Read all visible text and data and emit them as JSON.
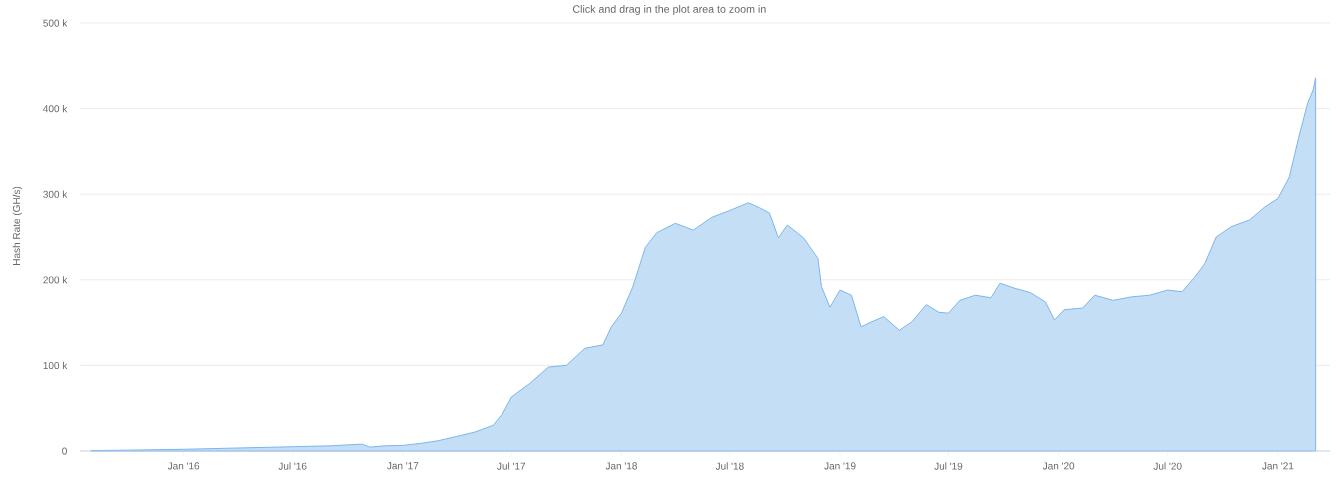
{
  "chart_data": {
    "type": "area",
    "subtitle": "Click and drag in the plot area to zoom in",
    "ylabel": "Hash Rate (GH/s)",
    "x": [
      "2015-07-30",
      "2015-10-01",
      "2016-01-01",
      "2016-04-01",
      "2016-07-01",
      "2016-09-01",
      "2016-10-25",
      "2016-11-07",
      "2016-12-01",
      "2017-01-01",
      "2017-02-01",
      "2017-03-01",
      "2017-04-01",
      "2017-05-01",
      "2017-06-01",
      "2017-06-15",
      "2017-07-01",
      "2017-08-01",
      "2017-09-01",
      "2017-10-01",
      "2017-11-01",
      "2017-12-01",
      "2017-12-15",
      "2018-01-01",
      "2018-01-20",
      "2018-02-10",
      "2018-03-01",
      "2018-04-01",
      "2018-05-01",
      "2018-06-01",
      "2018-07-01",
      "2018-08-01",
      "2018-08-20",
      "2018-09-05",
      "2018-09-20",
      "2018-10-05",
      "2018-11-01",
      "2018-11-25",
      "2018-12-01",
      "2018-12-15",
      "2019-01-01",
      "2019-01-20",
      "2019-02-05",
      "2019-02-20",
      "2019-03-15",
      "2019-04-10",
      "2019-05-01",
      "2019-05-25",
      "2019-06-15",
      "2019-07-01",
      "2019-07-20",
      "2019-08-15",
      "2019-09-10",
      "2019-09-25",
      "2019-10-20",
      "2019-11-15",
      "2019-12-10",
      "2019-12-25",
      "2020-01-10",
      "2020-02-10",
      "2020-03-01",
      "2020-04-01",
      "2020-05-01",
      "2020-06-01",
      "2020-07-01",
      "2020-07-25",
      "2020-08-15",
      "2020-09-01",
      "2020-09-20",
      "2020-10-15",
      "2020-11-15",
      "2020-12-10",
      "2021-01-01",
      "2021-01-20",
      "2021-02-05",
      "2021-02-20",
      "2021-03-01",
      "2021-03-05"
    ],
    "values": [
      500,
      1000,
      2000,
      3500,
      5000,
      6000,
      8000,
      4500,
      6000,
      6500,
      9000,
      12000,
      17000,
      22000,
      30000,
      42000,
      63000,
      79000,
      98000,
      100000,
      120000,
      124000,
      145000,
      161000,
      192000,
      238000,
      255000,
      266000,
      258000,
      273000,
      281000,
      290000,
      284000,
      278000,
      249000,
      264000,
      249000,
      225000,
      192000,
      168000,
      188000,
      182000,
      145000,
      150000,
      157000,
      141000,
      151000,
      171000,
      162000,
      161000,
      176000,
      182000,
      179000,
      196000,
      190000,
      185000,
      174000,
      153000,
      165000,
      167000,
      182000,
      176000,
      180000,
      182000,
      188000,
      186000,
      203000,
      219000,
      250000,
      262000,
      270000,
      285000,
      295000,
      320000,
      367000,
      407000,
      422000,
      436000
    ],
    "color": "#7cb5ec",
    "xlim": [
      "2015-07-12",
      "2021-03-29"
    ],
    "xticks": [
      {
        "value": "2016-01-01",
        "label": "Jan '16"
      },
      {
        "value": "2016-07-01",
        "label": "Jul '16"
      },
      {
        "value": "2017-01-01",
        "label": "Jan '17"
      },
      {
        "value": "2017-07-01",
        "label": "Jul '17"
      },
      {
        "value": "2018-01-01",
        "label": "Jan '18"
      },
      {
        "value": "2018-07-01",
        "label": "Jul '18"
      },
      {
        "value": "2019-01-01",
        "label": "Jan '19"
      },
      {
        "value": "2019-07-01",
        "label": "Jul '19"
      },
      {
        "value": "2020-01-01",
        "label": "Jan '20"
      },
      {
        "value": "2020-07-01",
        "label": "Jul '20"
      },
      {
        "value": "2021-01-01",
        "label": "Jan '21"
      }
    ],
    "ylim": [
      0,
      500000
    ],
    "yticks": [
      {
        "value": 0,
        "label": "0"
      },
      {
        "value": 100000,
        "label": "100 k"
      },
      {
        "value": 200000,
        "label": "200 k"
      },
      {
        "value": 300000,
        "label": "300 k"
      },
      {
        "value": 400000,
        "label": "400 k"
      },
      {
        "value": 500000,
        "label": "500 k"
      }
    ],
    "grid": "y"
  }
}
